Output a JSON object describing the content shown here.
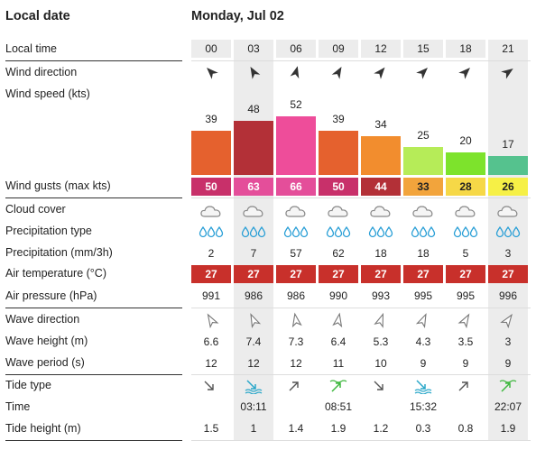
{
  "header": {
    "title": "Local date",
    "date": "Monday, Jul 02"
  },
  "rows": {
    "local_time": "Local time",
    "wind_direction": "Wind direction",
    "wind_speed": "Wind speed",
    "wind_speed_unit": "(kts)",
    "wind_gusts": "Wind gusts",
    "wind_gusts_unit": "(max kts)",
    "cloud_cover": "Cloud cover",
    "precip_type": "Precipitation type",
    "precipitation": "Precipitation",
    "precip_unit": "(mm/3h)",
    "air_temp": "Air temperature",
    "air_temp_unit": "(°C)",
    "air_pressure": "Air pressure",
    "air_pressure_unit": "(hPa)",
    "wave_direction": "Wave direction",
    "wave_height": "Wave height",
    "wave_height_unit": "(m)",
    "wave_period": "Wave period",
    "wave_period_unit": "(s)",
    "tide_type": "Tide type",
    "time": "Time",
    "tide_height": "Tide height",
    "tide_height_unit": "(m)"
  },
  "forecast": [
    {
      "hour": "00",
      "wind_dir_deg": 315,
      "wind_speed": "39",
      "wind_color": "#e5612e",
      "gust": "50",
      "gust_color": "#c8306a",
      "gust_text": "#ffffff",
      "cloud_icon": "cloud-icon",
      "precip_icon": "raindrops-icon",
      "precip": "2",
      "temp": "27",
      "temp_color": "#c8302b",
      "pressure": "991",
      "wave_dir_deg": 330,
      "wave_height": "6.6",
      "wave_period": "12",
      "tide_type": "falling",
      "tide_icon": "tide-falling-icon",
      "tide_color": "#555555",
      "tide_time": "",
      "tide_height": "1.5"
    },
    {
      "hour": "03",
      "wind_dir_deg": 330,
      "wind_speed": "48",
      "wind_color": "#b33037",
      "gust": "63",
      "gust_color": "#e44e9a",
      "gust_text": "#ffffff",
      "cloud_icon": "cloud-icon",
      "precip_icon": "raindrops-icon",
      "precip": "7",
      "temp": "27",
      "temp_color": "#c8302b",
      "pressure": "986",
      "wave_dir_deg": 335,
      "wave_height": "7.4",
      "wave_period": "12",
      "tide_type": "low",
      "tide_icon": "tide-low-icon",
      "tide_color": "#2aa7c9",
      "tide_time": "03:11",
      "tide_height": "1"
    },
    {
      "hour": "06",
      "wind_dir_deg": 15,
      "wind_speed": "52",
      "wind_color": "#ee4d9a",
      "gust": "66",
      "gust_color": "#e44e9a",
      "gust_text": "#ffffff",
      "cloud_icon": "cloud-icon",
      "precip_icon": "raindrops-icon",
      "precip": "57",
      "temp": "27",
      "temp_color": "#c8302b",
      "pressure": "986",
      "wave_dir_deg": 350,
      "wave_height": "7.3",
      "wave_period": "12",
      "tide_type": "rising",
      "tide_icon": "tide-rising-icon",
      "tide_color": "#555555",
      "tide_time": "",
      "tide_height": "1.4"
    },
    {
      "hour": "09",
      "wind_dir_deg": 30,
      "wind_speed": "39",
      "wind_color": "#e5612e",
      "gust": "50",
      "gust_color": "#c8306a",
      "gust_text": "#ffffff",
      "cloud_icon": "cloud-icon",
      "precip_icon": "raindrops-icon",
      "precip": "62",
      "temp": "27",
      "temp_color": "#c8302b",
      "pressure": "990",
      "wave_dir_deg": 10,
      "wave_height": "6.4",
      "wave_period": "11",
      "tide_type": "high",
      "tide_icon": "tide-high-icon",
      "tide_color": "#3fb83f",
      "tide_time": "08:51",
      "tide_height": "1.9"
    },
    {
      "hour": "12",
      "wind_dir_deg": 40,
      "wind_speed": "34",
      "wind_color": "#f28d2e",
      "gust": "44",
      "gust_color": "#b33037",
      "gust_text": "#ffffff",
      "cloud_icon": "cloud-icon",
      "precip_icon": "raindrops-icon",
      "precip": "18",
      "temp": "27",
      "temp_color": "#c8302b",
      "pressure": "993",
      "wave_dir_deg": 20,
      "wave_height": "5.3",
      "wave_period": "10",
      "tide_type": "falling",
      "tide_icon": "tide-falling-icon",
      "tide_color": "#555555",
      "tide_time": "",
      "tide_height": "1.2"
    },
    {
      "hour": "15",
      "wind_dir_deg": 45,
      "wind_speed": "25",
      "wind_color": "#b6ec58",
      "gust": "33",
      "gust_color": "#f2a43c",
      "gust_text": "#222222",
      "cloud_icon": "cloud-icon",
      "precip_icon": "raindrops-icon",
      "precip": "18",
      "temp": "27",
      "temp_color": "#c8302b",
      "pressure": "995",
      "wave_dir_deg": 25,
      "wave_height": "4.3",
      "wave_period": "9",
      "tide_type": "low",
      "tide_icon": "tide-low-icon",
      "tide_color": "#2aa7c9",
      "tide_time": "15:32",
      "tide_height": "0.3"
    },
    {
      "hour": "18",
      "wind_dir_deg": 45,
      "wind_speed": "20",
      "wind_color": "#7de32c",
      "gust": "28",
      "gust_color": "#f6d847",
      "gust_text": "#222222",
      "cloud_icon": "cloud-icon",
      "precip_icon": "raindrops-icon",
      "precip": "5",
      "temp": "27",
      "temp_color": "#c8302b",
      "pressure": "995",
      "wave_dir_deg": 30,
      "wave_height": "3.5",
      "wave_period": "9",
      "tide_type": "rising",
      "tide_icon": "tide-rising-icon",
      "tide_color": "#555555",
      "tide_time": "",
      "tide_height": "0.8"
    },
    {
      "hour": "21",
      "wind_dir_deg": 55,
      "wind_speed": "17",
      "wind_color": "#55c28e",
      "gust": "26",
      "gust_color": "#f6f046",
      "gust_text": "#222222",
      "cloud_icon": "cloud-icon",
      "precip_icon": "raindrops-icon",
      "precip": "3",
      "temp": "27",
      "temp_color": "#c8302b",
      "pressure": "996",
      "wave_dir_deg": 35,
      "wave_height": "3",
      "wave_period": "9",
      "tide_type": "high",
      "tide_icon": "tide-high-icon",
      "tide_color": "#3fb83f",
      "tide_time": "22:07",
      "tide_height": "1.9"
    }
  ],
  "shaded_columns": [
    1,
    7
  ]
}
